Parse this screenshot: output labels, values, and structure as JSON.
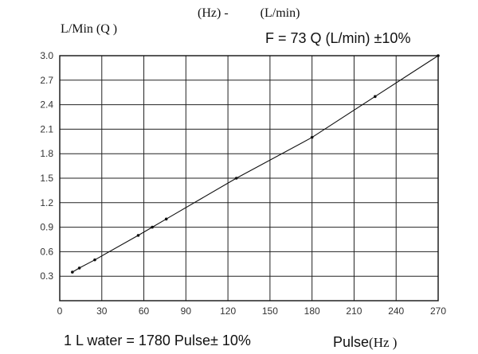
{
  "chart_data": {
    "type": "line",
    "title": "(Hz) -",
    "title_unit": "(L/min)",
    "ylabel": "L/Min (Q )",
    "xlabel": "Pulse",
    "xlabel_unit": "(Hz )",
    "formula": "F = 73 Q (L/min) ±10%",
    "footnote": "1 L water = 1780 Pulse± 10%",
    "xlim": [
      0,
      270
    ],
    "ylim": [
      0,
      3.0
    ],
    "x_ticks": [
      0,
      30,
      60,
      90,
      120,
      150,
      180,
      210,
      240,
      270
    ],
    "y_ticks": [
      "0.3",
      "0.6",
      "0.9",
      "1.2",
      "1.5",
      "1.8",
      "2.1",
      "2.4",
      "2.7",
      "3.0"
    ],
    "grid": true,
    "series": [
      {
        "x": [
          9,
          14,
          25,
          56,
          66,
          76,
          126,
          180,
          225,
          270
        ],
        "y": [
          0.35,
          0.4,
          0.5,
          0.8,
          0.9,
          1.0,
          1.5,
          2.0,
          2.5,
          3.0
        ]
      }
    ]
  }
}
